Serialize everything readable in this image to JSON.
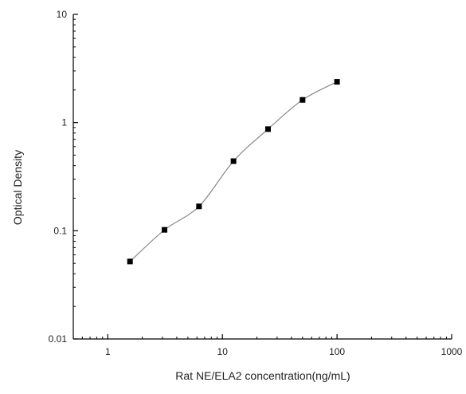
{
  "chart_data": {
    "type": "scatter",
    "title": "",
    "xlabel": "Rat NE/ELA2 concentration(ng/mL)",
    "ylabel": "Optical Density",
    "x_scale": "log",
    "y_scale": "log",
    "xlim": [
      0.5,
      1000
    ],
    "ylim": [
      0.01,
      10
    ],
    "x_ticks": [
      {
        "value": 1,
        "label": "1"
      },
      {
        "value": 10,
        "label": "10"
      },
      {
        "value": 100,
        "label": "100"
      },
      {
        "value": 1000,
        "label": "1000"
      }
    ],
    "y_ticks": [
      {
        "value": 0.01,
        "label": "0.01"
      },
      {
        "value": 0.1,
        "label": "0.1"
      },
      {
        "value": 1,
        "label": "1"
      },
      {
        "value": 10,
        "label": "10"
      }
    ],
    "grid": false,
    "legend": "none",
    "series": [
      {
        "x": [
          1.5625,
          3.125,
          6.25,
          12.5,
          25,
          50,
          100
        ],
        "y": [
          0.052,
          0.102,
          0.168,
          0.44,
          0.87,
          1.62,
          2.38
        ],
        "marker": "square",
        "fit": "curve",
        "color": "#000000",
        "line_color": "#8a8a8a"
      }
    ]
  }
}
